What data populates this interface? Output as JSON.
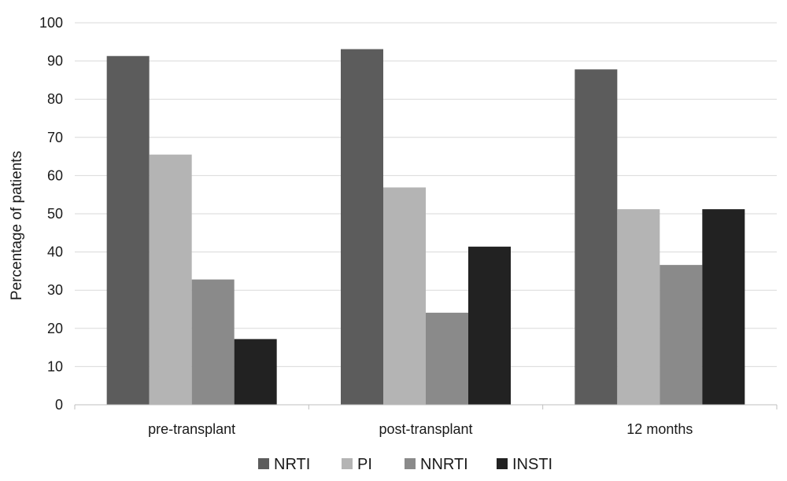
{
  "chart_data": {
    "type": "bar",
    "title": "",
    "xlabel": "",
    "ylabel": "Percentage of patients",
    "categories": [
      "pre-transplant",
      "post-transplant",
      "12 months"
    ],
    "series": [
      {
        "name": "NRTI",
        "values": [
          91.3,
          93.1,
          87.8
        ],
        "color": "#5c5c5c"
      },
      {
        "name": "PI",
        "values": [
          65.5,
          56.9,
          51.2
        ],
        "color": "#b4b4b4"
      },
      {
        "name": "NNRTI",
        "values": [
          32.8,
          24.1,
          36.6
        ],
        "color": "#8a8a8a"
      },
      {
        "name": "INSTI",
        "values": [
          17.2,
          41.4,
          51.2
        ],
        "color": "#222222"
      }
    ],
    "ylim": [
      0,
      100
    ],
    "yticks": [
      0,
      10,
      20,
      30,
      40,
      50,
      60,
      70,
      80,
      90,
      100
    ],
    "grid": true,
    "legend_position": "bottom"
  }
}
